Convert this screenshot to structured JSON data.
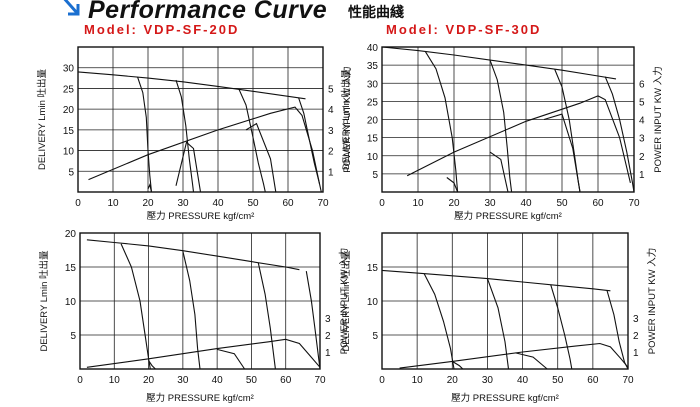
{
  "header": {
    "title": "Performance Curve",
    "title_cn": "性能曲綫",
    "icon": "arrow-icon"
  },
  "models": [
    {
      "prefix": "Model:",
      "name": "VDP-SF-20D"
    },
    {
      "prefix": "Model:",
      "name": "VDP-SF-30D"
    }
  ],
  "colors": {
    "curve": "#111111",
    "grid": "#222222",
    "model": "#d51818"
  },
  "chart_data": [
    {
      "type": "line",
      "model": "VDP-SF-20D",
      "xlabel": "壓力 PRESSURE kgf/cm²",
      "ylabel": "DELIVERY Lmin 吐出量",
      "y2label": "POWER INPUT KW 入力",
      "xlim": [
        0,
        70
      ],
      "ylim": [
        0,
        35
      ],
      "y2lim": [
        0,
        7
      ],
      "xticks": [
        "0",
        "10",
        "20",
        "30",
        "40",
        "50",
        "60",
        "70"
      ],
      "yticks": [
        "5",
        "10",
        "15",
        "20",
        "25",
        "30"
      ],
      "y2ticks": [
        "1",
        "2",
        "3",
        "4",
        "5"
      ],
      "grid": true,
      "delivery": [
        [
          [
            0,
            29
          ],
          [
            10,
            28.3
          ],
          [
            20,
            27.5
          ],
          [
            30,
            26.6
          ],
          [
            40,
            25.5
          ],
          [
            50,
            24.3
          ],
          [
            60,
            23.1
          ],
          [
            65,
            22.5
          ]
        ],
        [
          [
            17,
            27.8
          ],
          [
            18.5,
            24
          ],
          [
            19.5,
            18
          ],
          [
            20,
            10
          ],
          [
            20.5,
            4
          ],
          [
            21,
            0
          ]
        ],
        [
          [
            28,
            27
          ],
          [
            29.5,
            23
          ],
          [
            30.8,
            16
          ],
          [
            31.8,
            8
          ],
          [
            32.7,
            2
          ],
          [
            33,
            0
          ]
        ],
        [
          [
            46,
            24.8
          ],
          [
            48,
            21
          ],
          [
            49.8,
            14
          ],
          [
            51.5,
            7
          ],
          [
            53,
            2
          ],
          [
            53.5,
            0
          ]
        ],
        [
          [
            63,
            22.8
          ],
          [
            64.5,
            19
          ],
          [
            66,
            13
          ],
          [
            67.5,
            7
          ],
          [
            69,
            2
          ],
          [
            69.5,
            0
          ]
        ]
      ],
      "power": [
        [
          [
            3,
            0.6
          ],
          [
            20,
            1.8
          ],
          [
            40,
            3.0
          ],
          [
            55,
            3.8
          ],
          [
            62,
            4.1
          ],
          [
            64,
            3.7
          ],
          [
            67,
            2.0
          ],
          [
            69,
            0.4
          ]
        ],
        [
          [
            20,
            0.15
          ],
          [
            20.5,
            0.35
          ],
          [
            21,
            0
          ]
        ],
        [
          [
            28,
            0.3
          ],
          [
            31,
            2.4
          ],
          [
            33,
            2.1
          ],
          [
            35,
            0
          ]
        ],
        [
          [
            48,
            3.0
          ],
          [
            51,
            3.3
          ],
          [
            55,
            1.6
          ],
          [
            56.5,
            0
          ]
        ]
      ]
    },
    {
      "type": "line",
      "model": "VDP-SF-30D",
      "xlabel": "壓力 PRESSURE kgf/cm²",
      "ylabel": "DELIVERY Lmin 吐出量",
      "y2label": "POWER INPUT KW 入力",
      "xlim": [
        0,
        70
      ],
      "ylim": [
        0,
        40
      ],
      "y2lim": [
        0,
        8
      ],
      "xticks": [
        "0",
        "10",
        "20",
        "30",
        "40",
        "50",
        "60",
        "70"
      ],
      "yticks": [
        "5",
        "10",
        "15",
        "20",
        "25",
        "30",
        "35",
        "40"
      ],
      "y2ticks": [
        "1",
        "2",
        "3",
        "4",
        "5",
        "6"
      ],
      "grid": true,
      "delivery": [
        [
          [
            0,
            40
          ],
          [
            10,
            39
          ],
          [
            20,
            37.8
          ],
          [
            30,
            36.4
          ],
          [
            40,
            35
          ],
          [
            50,
            33.6
          ],
          [
            60,
            32
          ],
          [
            65,
            31.2
          ]
        ],
        [
          [
            12,
            38.8
          ],
          [
            15,
            34
          ],
          [
            17.5,
            26
          ],
          [
            19.5,
            15
          ],
          [
            20.5,
            6
          ],
          [
            21,
            0
          ]
        ],
        [
          [
            30,
            36.4
          ],
          [
            32,
            31
          ],
          [
            33.8,
            22
          ],
          [
            34.8,
            12
          ],
          [
            35.5,
            4
          ],
          [
            36,
            0
          ]
        ],
        [
          [
            48,
            33.8
          ],
          [
            50,
            29
          ],
          [
            52,
            20
          ],
          [
            53.5,
            10
          ],
          [
            54.5,
            3
          ],
          [
            55,
            0
          ]
        ],
        [
          [
            62,
            31.8
          ],
          [
            64,
            27
          ],
          [
            66,
            20
          ],
          [
            68,
            11
          ],
          [
            69.5,
            3
          ],
          [
            70,
            0
          ]
        ]
      ],
      "power": [
        [
          [
            7,
            0.9
          ],
          [
            20,
            2.2
          ],
          [
            40,
            3.9
          ],
          [
            55,
            4.9
          ],
          [
            60,
            5.3
          ],
          [
            62,
            5.1
          ],
          [
            66,
            3.0
          ],
          [
            69,
            0.5
          ]
        ],
        [
          [
            18,
            0.8
          ],
          [
            20,
            0.5
          ],
          [
            21,
            0
          ]
        ],
        [
          [
            30,
            2.2
          ],
          [
            33,
            1.8
          ],
          [
            35,
            0
          ]
        ],
        [
          [
            45,
            4.0
          ],
          [
            50,
            4.3
          ],
          [
            53,
            2.4
          ],
          [
            55,
            0
          ]
        ]
      ]
    },
    {
      "type": "line",
      "model": "VDP-SF-20D",
      "xlabel": "壓力 PRESSURE kgf/cm²",
      "ylabel": "DELIVERY Lmin 吐出量",
      "y2label": "POWER INPUT KW 入力",
      "xlim": [
        0,
        70
      ],
      "ylim": [
        0,
        20
      ],
      "y2lim": [
        0,
        8
      ],
      "xticks": [
        "0",
        "10",
        "20",
        "30",
        "40",
        "50",
        "60",
        "70"
      ],
      "yticks": [
        "5",
        "10",
        "15",
        "20"
      ],
      "y2ticks": [
        "1",
        "2",
        "3"
      ],
      "grid": true,
      "delivery": [
        [
          [
            2,
            19
          ],
          [
            10,
            18.6
          ],
          [
            20,
            18.1
          ],
          [
            30,
            17.4
          ],
          [
            40,
            16.6
          ],
          [
            50,
            15.8
          ],
          [
            60,
            15
          ],
          [
            64,
            14.6
          ]
        ],
        [
          [
            12,
            18.4
          ],
          [
            15,
            15
          ],
          [
            17.5,
            10
          ],
          [
            19,
            5
          ],
          [
            20,
            1.5
          ],
          [
            20.5,
            0
          ]
        ],
        [
          [
            30,
            17.3
          ],
          [
            32,
            13
          ],
          [
            33.5,
            8
          ],
          [
            34.3,
            3
          ],
          [
            35,
            0
          ]
        ],
        [
          [
            52,
            15.6
          ],
          [
            54,
            11
          ],
          [
            55.5,
            6
          ],
          [
            56.5,
            2
          ],
          [
            57,
            0
          ]
        ],
        [
          [
            66,
            14.4
          ],
          [
            67.5,
            10
          ],
          [
            68.5,
            6
          ],
          [
            69.5,
            2
          ],
          [
            70,
            0
          ]
        ]
      ],
      "power": [
        [
          [
            2,
            0.1
          ],
          [
            20,
            0.6
          ],
          [
            40,
            1.2
          ],
          [
            55,
            1.6
          ],
          [
            60,
            1.75
          ],
          [
            64,
            1.5
          ],
          [
            67,
            0.8
          ],
          [
            70,
            0.1
          ]
        ],
        [
          [
            20,
            0.5
          ],
          [
            21,
            0.2
          ],
          [
            22,
            0
          ]
        ],
        [
          [
            40,
            1.15
          ],
          [
            45,
            0.9
          ],
          [
            48,
            0
          ]
        ]
      ]
    },
    {
      "type": "line",
      "model": "VDP-SF-30D",
      "xlabel": "壓力 PRESSURE kgf/cm²",
      "ylabel": "DELIVERY Lmin 吐出量",
      "y2label": "POWER INPUT KW 入力",
      "xlim": [
        0,
        70
      ],
      "ylim": [
        0,
        20
      ],
      "y2lim": [
        0,
        8
      ],
      "xticks": [
        "0",
        "10",
        "20",
        "30",
        "40",
        "50",
        "60",
        "70"
      ],
      "yticks": [
        "5",
        "10",
        "15"
      ],
      "y2ticks": [
        "1",
        "2",
        "3"
      ],
      "grid": true,
      "delivery": [
        [
          [
            0,
            14.5
          ],
          [
            10,
            14.1
          ],
          [
            20,
            13.7
          ],
          [
            30,
            13.3
          ],
          [
            40,
            12.8
          ],
          [
            50,
            12.3
          ],
          [
            60,
            11.8
          ],
          [
            65,
            11.5
          ]
        ],
        [
          [
            12,
            14
          ],
          [
            15,
            11
          ],
          [
            17.5,
            7
          ],
          [
            19.5,
            3
          ],
          [
            20.5,
            0
          ]
        ],
        [
          [
            30,
            13.3
          ],
          [
            33,
            9
          ],
          [
            35,
            4
          ],
          [
            36,
            0
          ]
        ],
        [
          [
            48,
            12.4
          ],
          [
            50,
            9
          ],
          [
            52,
            5
          ],
          [
            53.5,
            1.5
          ],
          [
            54,
            0
          ]
        ],
        [
          [
            64,
            11.6
          ],
          [
            66,
            8
          ],
          [
            67.5,
            4
          ],
          [
            69,
            1
          ],
          [
            70,
            0
          ]
        ]
      ],
      "power": [
        [
          [
            5,
            0.05
          ],
          [
            20,
            0.45
          ],
          [
            40,
            1.0
          ],
          [
            55,
            1.35
          ],
          [
            62,
            1.5
          ],
          [
            65,
            1.3
          ],
          [
            68,
            0.6
          ],
          [
            70,
            0.1
          ]
        ],
        [
          [
            20,
            0.45
          ],
          [
            22,
            0.2
          ],
          [
            23,
            0
          ]
        ],
        [
          [
            38,
            0.95
          ],
          [
            43,
            0.7
          ],
          [
            47,
            0
          ]
        ]
      ]
    }
  ]
}
